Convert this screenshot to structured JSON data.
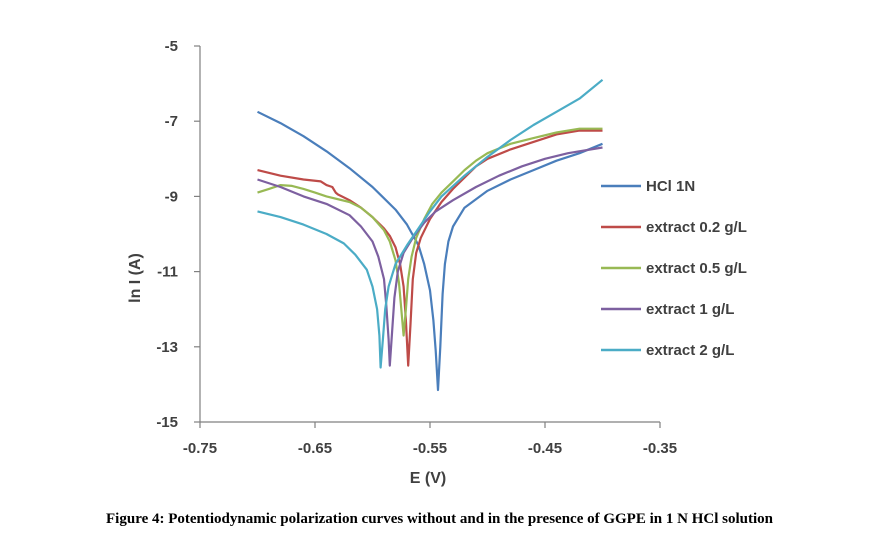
{
  "caption": "Figure 4: Potentiodynamic polarization curves without and in the presence of GGPE in 1 N HCl solution",
  "chart_data": {
    "type": "line",
    "title": "",
    "xlabel": "E (V)",
    "ylabel": "ln I (A)",
    "xlim": [
      -0.75,
      -0.35
    ],
    "ylim": [
      -15,
      -5
    ],
    "xticks": [
      -0.75,
      -0.65,
      -0.55,
      -0.45,
      -0.35
    ],
    "yticks": [
      -15,
      -13,
      -11,
      -9,
      -7,
      -5
    ],
    "xtick_labels": [
      "-0.75",
      "-0.65",
      "-0.55",
      "-0.45",
      "-0.35"
    ],
    "ytick_labels": [
      "-15",
      "-13",
      "-11",
      "-9",
      "-7",
      "-5"
    ],
    "grid": false,
    "legend_position": "right",
    "series": [
      {
        "name": "HCl 1N",
        "color": "#4a7ebb",
        "points": [
          [
            -0.7,
            -6.75
          ],
          [
            -0.68,
            -7.05
          ],
          [
            -0.66,
            -7.4
          ],
          [
            -0.64,
            -7.8
          ],
          [
            -0.62,
            -8.25
          ],
          [
            -0.6,
            -8.75
          ],
          [
            -0.58,
            -9.35
          ],
          [
            -0.57,
            -9.75
          ],
          [
            -0.56,
            -10.3
          ],
          [
            -0.555,
            -10.8
          ],
          [
            -0.55,
            -11.5
          ],
          [
            -0.547,
            -12.3
          ],
          [
            -0.545,
            -13.1
          ],
          [
            -0.543,
            -14.15
          ],
          [
            -0.541,
            -13.0
          ],
          [
            -0.539,
            -11.6
          ],
          [
            -0.537,
            -10.8
          ],
          [
            -0.534,
            -10.2
          ],
          [
            -0.53,
            -9.8
          ],
          [
            -0.52,
            -9.3
          ],
          [
            -0.5,
            -8.85
          ],
          [
            -0.48,
            -8.55
          ],
          [
            -0.46,
            -8.3
          ],
          [
            -0.44,
            -8.05
          ],
          [
            -0.42,
            -7.85
          ],
          [
            -0.4,
            -7.6
          ]
        ]
      },
      {
        "name": "extract 0.2 g/L",
        "color": "#be4b48",
        "points": [
          [
            -0.7,
            -8.3
          ],
          [
            -0.68,
            -8.45
          ],
          [
            -0.66,
            -8.55
          ],
          [
            -0.645,
            -8.6
          ],
          [
            -0.64,
            -8.7
          ],
          [
            -0.635,
            -8.75
          ],
          [
            -0.632,
            -8.9
          ],
          [
            -0.63,
            -8.95
          ],
          [
            -0.62,
            -9.1
          ],
          [
            -0.61,
            -9.3
          ],
          [
            -0.6,
            -9.55
          ],
          [
            -0.59,
            -9.85
          ],
          [
            -0.585,
            -10.05
          ],
          [
            -0.58,
            -10.35
          ],
          [
            -0.576,
            -10.8
          ],
          [
            -0.573,
            -11.4
          ],
          [
            -0.571,
            -12.3
          ],
          [
            -0.569,
            -13.5
          ],
          [
            -0.567,
            -12.4
          ],
          [
            -0.565,
            -11.2
          ],
          [
            -0.562,
            -10.5
          ],
          [
            -0.558,
            -10.1
          ],
          [
            -0.55,
            -9.6
          ],
          [
            -0.54,
            -9.15
          ],
          [
            -0.53,
            -8.8
          ],
          [
            -0.52,
            -8.5
          ],
          [
            -0.51,
            -8.2
          ],
          [
            -0.5,
            -8.0
          ],
          [
            -0.48,
            -7.75
          ],
          [
            -0.46,
            -7.55
          ],
          [
            -0.44,
            -7.35
          ],
          [
            -0.42,
            -7.25
          ],
          [
            -0.4,
            -7.25
          ]
        ]
      },
      {
        "name": "extract 0.5 g/L",
        "color": "#98b954",
        "points": [
          [
            -0.7,
            -8.9
          ],
          [
            -0.69,
            -8.8
          ],
          [
            -0.68,
            -8.7
          ],
          [
            -0.67,
            -8.72
          ],
          [
            -0.66,
            -8.8
          ],
          [
            -0.65,
            -8.9
          ],
          [
            -0.64,
            -9.0
          ],
          [
            -0.62,
            -9.15
          ],
          [
            -0.61,
            -9.3
          ],
          [
            -0.6,
            -9.55
          ],
          [
            -0.59,
            -9.9
          ],
          [
            -0.585,
            -10.2
          ],
          [
            -0.58,
            -10.7
          ],
          [
            -0.577,
            -11.3
          ],
          [
            -0.575,
            -12.0
          ],
          [
            -0.573,
            -12.7
          ],
          [
            -0.571,
            -12.0
          ],
          [
            -0.569,
            -11.2
          ],
          [
            -0.566,
            -10.6
          ],
          [
            -0.562,
            -10.1
          ],
          [
            -0.555,
            -9.6
          ],
          [
            -0.548,
            -9.2
          ],
          [
            -0.54,
            -8.9
          ],
          [
            -0.53,
            -8.6
          ],
          [
            -0.52,
            -8.3
          ],
          [
            -0.51,
            -8.05
          ],
          [
            -0.5,
            -7.85
          ],
          [
            -0.48,
            -7.6
          ],
          [
            -0.46,
            -7.45
          ],
          [
            -0.44,
            -7.3
          ],
          [
            -0.42,
            -7.2
          ],
          [
            -0.4,
            -7.2
          ]
        ]
      },
      {
        "name": "extract 1 g/L",
        "color": "#7d60a0",
        "points": [
          [
            -0.7,
            -8.55
          ],
          [
            -0.68,
            -8.75
          ],
          [
            -0.66,
            -9.0
          ],
          [
            -0.64,
            -9.2
          ],
          [
            -0.62,
            -9.5
          ],
          [
            -0.61,
            -9.8
          ],
          [
            -0.6,
            -10.2
          ],
          [
            -0.595,
            -10.6
          ],
          [
            -0.59,
            -11.2
          ],
          [
            -0.588,
            -11.9
          ],
          [
            -0.586,
            -12.8
          ],
          [
            -0.585,
            -13.5
          ],
          [
            -0.583,
            -12.6
          ],
          [
            -0.581,
            -11.7
          ],
          [
            -0.578,
            -11.0
          ],
          [
            -0.573,
            -10.5
          ],
          [
            -0.565,
            -10.1
          ],
          [
            -0.555,
            -9.7
          ],
          [
            -0.545,
            -9.4
          ],
          [
            -0.53,
            -9.1
          ],
          [
            -0.51,
            -8.75
          ],
          [
            -0.49,
            -8.45
          ],
          [
            -0.47,
            -8.2
          ],
          [
            -0.45,
            -8.0
          ],
          [
            -0.43,
            -7.85
          ],
          [
            -0.4,
            -7.7
          ]
        ]
      },
      {
        "name": "extract 2 g/L",
        "color": "#4bacc6",
        "points": [
          [
            -0.7,
            -9.4
          ],
          [
            -0.68,
            -9.55
          ],
          [
            -0.66,
            -9.75
          ],
          [
            -0.64,
            -10.0
          ],
          [
            -0.625,
            -10.25
          ],
          [
            -0.615,
            -10.55
          ],
          [
            -0.605,
            -10.95
          ],
          [
            -0.6,
            -11.4
          ],
          [
            -0.596,
            -12.0
          ],
          [
            -0.594,
            -12.7
          ],
          [
            -0.593,
            -13.55
          ],
          [
            -0.591,
            -12.8
          ],
          [
            -0.589,
            -12.0
          ],
          [
            -0.586,
            -11.4
          ],
          [
            -0.58,
            -10.8
          ],
          [
            -0.57,
            -10.3
          ],
          [
            -0.56,
            -9.85
          ],
          [
            -0.55,
            -9.4
          ],
          [
            -0.54,
            -9.0
          ],
          [
            -0.52,
            -8.45
          ],
          [
            -0.5,
            -7.95
          ],
          [
            -0.48,
            -7.5
          ],
          [
            -0.46,
            -7.1
          ],
          [
            -0.44,
            -6.75
          ],
          [
            -0.42,
            -6.4
          ],
          [
            -0.4,
            -5.9
          ]
        ]
      }
    ]
  }
}
